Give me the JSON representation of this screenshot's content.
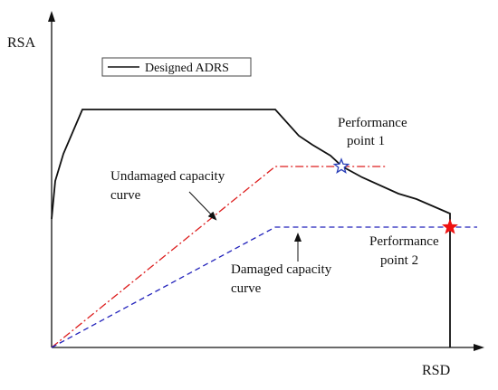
{
  "axes": {
    "y_label": "RSA",
    "x_label": "RSD"
  },
  "legend": {
    "entry": "Designed ADRS"
  },
  "labels": {
    "performance_point_1": [
      "Performance",
      "point 1"
    ],
    "performance_point_2": [
      "Performance",
      "point 2"
    ],
    "undamaged_curve": [
      "Undamaged capacity",
      "curve"
    ],
    "damaged_curve": [
      "Damaged capacity",
      "curve"
    ]
  },
  "colors": {
    "adrs": "#111111",
    "undamaged": "#dd1f1f",
    "damaged": "#2222bb",
    "point1_star": "#2a3fb8",
    "point2_star": "#ee1111"
  }
}
